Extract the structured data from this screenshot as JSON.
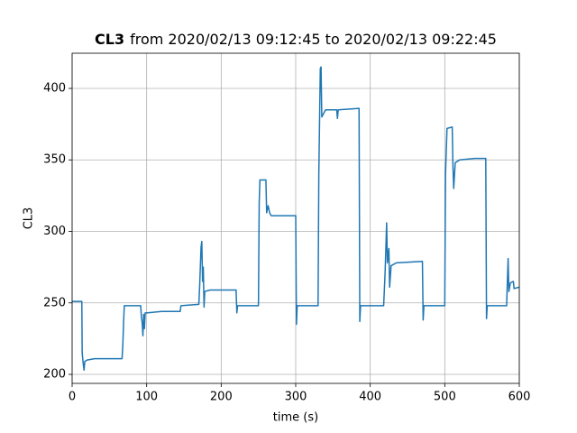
{
  "chart_data": {
    "type": "line",
    "title": "CL3",
    "title_range": "from 2020/02/13 09:12:45 to 2020/02/13 09:22:45",
    "xlabel": "time (s)",
    "ylabel": "CL3",
    "color": "#1f77b4",
    "grid": true,
    "xlim": [
      0,
      600
    ],
    "xticks": [
      0,
      100,
      200,
      300,
      400,
      500,
      600
    ],
    "ylim": [
      193.7,
      424.6
    ],
    "yticks": [
      200,
      250,
      300,
      350,
      400
    ],
    "x": [
      0,
      13,
      13.5,
      15,
      16,
      17,
      20,
      30,
      50,
      67,
      68,
      69,
      70,
      90,
      92,
      93,
      94,
      95,
      96,
      97,
      98,
      100,
      120,
      145,
      146,
      170,
      171,
      173,
      174,
      175,
      176,
      177,
      178,
      185,
      200,
      220,
      221,
      222,
      250,
      251,
      252,
      260,
      261,
      263,
      265,
      267,
      270,
      300,
      301,
      302,
      330,
      331,
      333,
      334,
      335,
      338,
      340,
      355,
      356,
      357,
      385,
      386,
      387,
      418,
      420,
      422,
      423,
      425,
      426,
      428,
      435,
      470,
      471,
      472,
      500,
      501,
      503,
      510,
      511,
      512,
      514,
      520,
      540,
      555,
      556,
      557,
      583,
      584,
      585,
      586,
      588,
      592,
      593,
      600
    ],
    "values": [
      251,
      251,
      215,
      207,
      203,
      209,
      210,
      211,
      211,
      211,
      220,
      236,
      248,
      248,
      248,
      240,
      236,
      227,
      242,
      232,
      243,
      243,
      244,
      244,
      248,
      249,
      260,
      289,
      293,
      265,
      275,
      247,
      258,
      259,
      259,
      259,
      243,
      248,
      248,
      320,
      336,
      336,
      313,
      318,
      313,
      311,
      311,
      311,
      235,
      248,
      248,
      340,
      414,
      415,
      380,
      383,
      385,
      385,
      379,
      385,
      386,
      237,
      248,
      248,
      272,
      306,
      278,
      288,
      261,
      276,
      278,
      279,
      238,
      248,
      248,
      340,
      372,
      373,
      345,
      330,
      348,
      350,
      351,
      351,
      239,
      248,
      248,
      265,
      281,
      258,
      264,
      265,
      260,
      261
    ]
  }
}
